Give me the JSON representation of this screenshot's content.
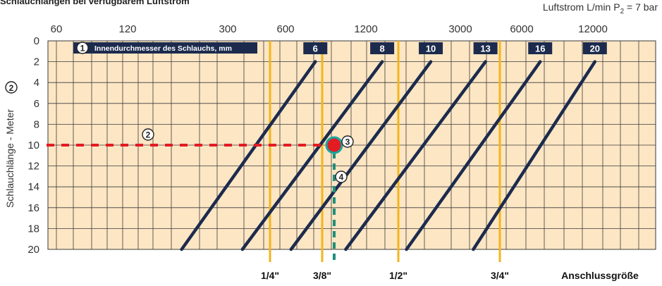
{
  "top_title": "Schlauchlängen bei verfügbarem Luftstrom",
  "flow_label": {
    "prefix": "Luftstrom L/min P",
    "sub": "2",
    "suffix": " = 7 bar"
  },
  "colors": {
    "background": "#fde6c4",
    "grid": "#3a3a3a",
    "diagonal": "#1c2b4d",
    "connector": "#f2b51c",
    "red": "#e31b23",
    "green": "#1f8f7a",
    "dot_fill": "#e31b23",
    "dot_ring": "#18a6a0",
    "box": "#1c2b4d"
  },
  "chart_data": {
    "type": "line",
    "y_axis": {
      "label": "Schlauchlänge - Meter",
      "ticks": [
        0,
        2,
        4,
        6,
        8,
        10,
        12,
        14,
        16,
        18,
        20
      ],
      "ylim": [
        0,
        20
      ],
      "inverted": true,
      "badge": "2"
    },
    "x_axis_top": {
      "label": "Luftstrom L/min P2 = 7 bar",
      "tick_labels": [
        "60",
        "120",
        "300",
        "600",
        "1200",
        "3000",
        "6000",
        "12000"
      ],
      "log_scale": true
    },
    "hose_header": {
      "number": "1",
      "text": "Innendurchmesser des Schlauchs, mm"
    },
    "series": [
      {
        "name": "6",
        "from": [
          20,
          0.22
        ],
        "to": [
          2,
          0.44
        ]
      },
      {
        "name": "8",
        "from": [
          20,
          0.32
        ],
        "to": [
          2,
          0.55
        ]
      },
      {
        "name": "10",
        "from": [
          20,
          0.4
        ],
        "to": [
          2,
          0.63
        ]
      },
      {
        "name": "13",
        "from": [
          20,
          0.49
        ],
        "to": [
          2,
          0.72
        ]
      },
      {
        "name": "16",
        "from": [
          20,
          0.59
        ],
        "to": [
          2,
          0.81
        ]
      },
      {
        "name": "20",
        "from": [
          20,
          0.7
        ],
        "to": [
          2,
          0.9
        ]
      }
    ],
    "connectors": [
      {
        "label": "1/4\""
      },
      {
        "label": "3/8\""
      },
      {
        "label": "1/2\""
      },
      {
        "label": "3/4\""
      }
    ],
    "connector_axis_label": "Anschlussgröße",
    "example": {
      "length_m": 10,
      "step_labels": [
        "2",
        "3",
        "4"
      ]
    },
    "grid": true
  }
}
